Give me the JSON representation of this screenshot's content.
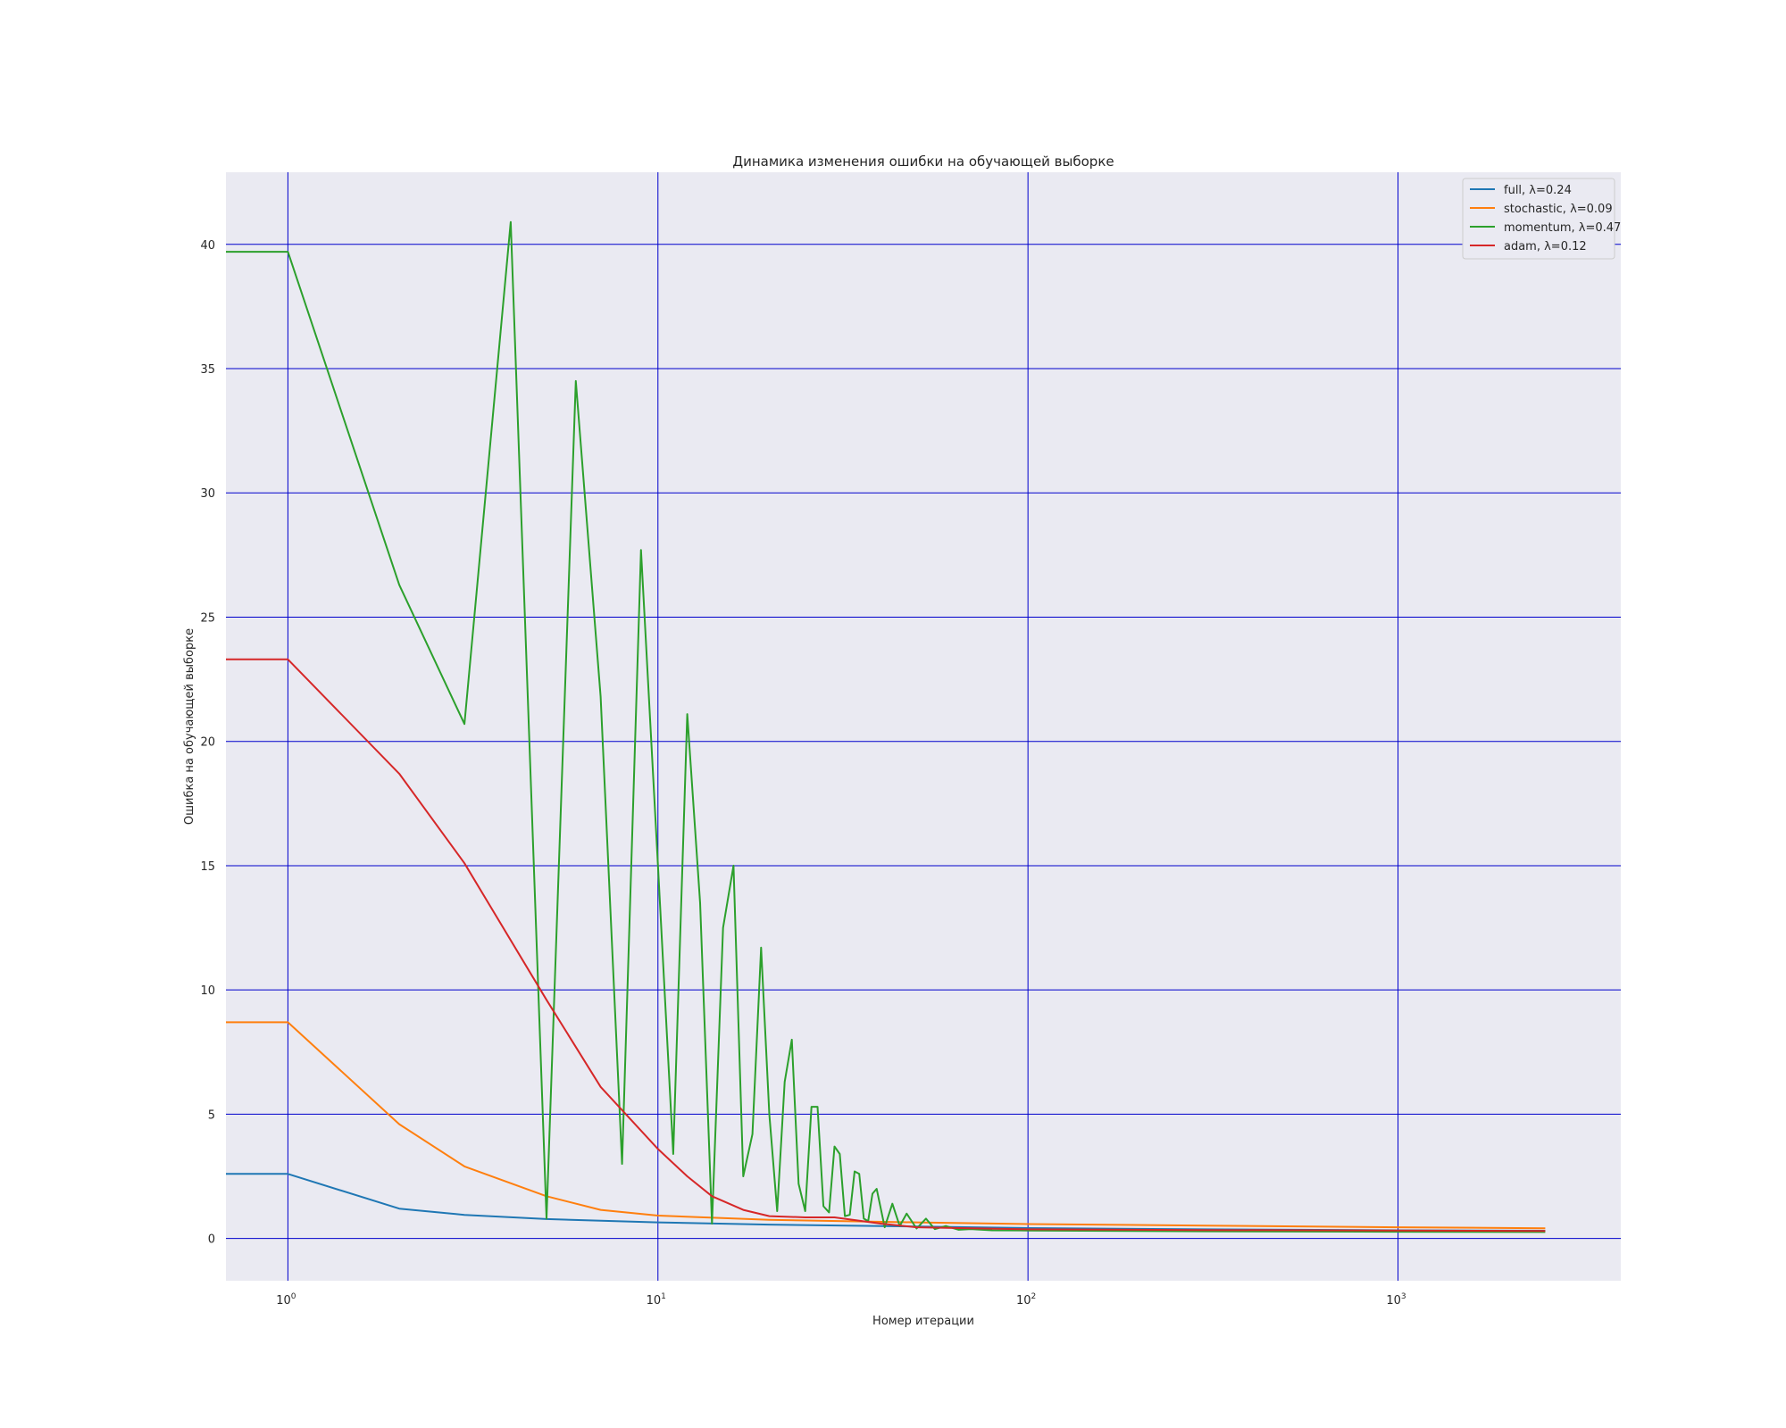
{
  "chart_data": {
    "type": "line",
    "title": "Динамика изменения ошибки на обучающей выборке",
    "xlabel": "Номер итерации",
    "ylabel": "Ошибка на обучающей выборке",
    "x_scale": "log",
    "xlim": [
      0.68,
      4000
    ],
    "ylim": [
      -1.7,
      42.9
    ],
    "x_ticks": [
      {
        "value": 1,
        "base": "10",
        "exp": "0"
      },
      {
        "value": 10,
        "base": "10",
        "exp": "1"
      },
      {
        "value": 100,
        "base": "10",
        "exp": "2"
      },
      {
        "value": 1000,
        "base": "10",
        "exp": "3"
      }
    ],
    "y_ticks": [
      0,
      5,
      10,
      15,
      20,
      25,
      30,
      35,
      40
    ],
    "grid": true,
    "legend_position": "top-right",
    "colors": {
      "background": "#eaeaf2",
      "grid": "#0000cc"
    },
    "series": [
      {
        "name": "full, λ=0.24",
        "color": "#1f77b4",
        "points": [
          [
            0.5,
            2.6
          ],
          [
            1,
            2.6
          ],
          [
            2,
            1.2
          ],
          [
            3,
            0.95
          ],
          [
            5,
            0.78
          ],
          [
            10,
            0.65
          ],
          [
            20,
            0.56
          ],
          [
            50,
            0.48
          ],
          [
            100,
            0.42
          ],
          [
            300,
            0.37
          ],
          [
            1000,
            0.33
          ],
          [
            2500,
            0.31
          ]
        ]
      },
      {
        "name": "stochastic, λ=0.09",
        "color": "#ff7f0e",
        "points": [
          [
            0.5,
            8.7
          ],
          [
            1,
            8.7
          ],
          [
            2,
            4.6
          ],
          [
            3,
            2.9
          ],
          [
            5,
            1.7
          ],
          [
            7,
            1.15
          ],
          [
            10,
            0.92
          ],
          [
            20,
            0.75
          ],
          [
            50,
            0.65
          ],
          [
            100,
            0.58
          ],
          [
            300,
            0.52
          ],
          [
            1000,
            0.45
          ],
          [
            2500,
            0.41
          ]
        ]
      },
      {
        "name": "momentum, λ=0.47",
        "color": "#2ca02c",
        "points": [
          [
            0.5,
            39.7
          ],
          [
            1,
            39.7
          ],
          [
            2,
            26.3
          ],
          [
            3,
            20.7
          ],
          [
            4,
            40.9
          ],
          [
            5,
            0.8
          ],
          [
            6,
            34.5
          ],
          [
            7,
            21.8
          ],
          [
            8,
            3.0
          ],
          [
            9,
            27.7
          ],
          [
            10,
            15.0
          ],
          [
            11,
            3.4
          ],
          [
            12,
            21.1
          ],
          [
            13,
            13.5
          ],
          [
            14,
            0.6
          ],
          [
            15,
            12.5
          ],
          [
            16,
            15.0
          ],
          [
            17,
            2.5
          ],
          [
            18,
            4.2
          ],
          [
            19,
            11.7
          ],
          [
            20,
            5.0
          ],
          [
            21,
            1.1
          ],
          [
            22,
            6.3
          ],
          [
            23,
            8.0
          ],
          [
            24,
            2.2
          ],
          [
            25,
            1.1
          ],
          [
            26,
            5.3
          ],
          [
            27,
            5.3
          ],
          [
            28,
            1.3
          ],
          [
            29,
            1.05
          ],
          [
            30,
            3.7
          ],
          [
            31,
            3.4
          ],
          [
            32,
            0.9
          ],
          [
            33,
            0.95
          ],
          [
            34,
            2.7
          ],
          [
            35,
            2.6
          ],
          [
            36,
            0.8
          ],
          [
            37,
            0.7
          ],
          [
            38,
            1.8
          ],
          [
            39,
            2.0
          ],
          [
            41,
            0.45
          ],
          [
            43,
            1.4
          ],
          [
            45,
            0.5
          ],
          [
            47,
            1.0
          ],
          [
            50,
            0.4
          ],
          [
            53,
            0.8
          ],
          [
            56,
            0.38
          ],
          [
            60,
            0.5
          ],
          [
            65,
            0.35
          ],
          [
            70,
            0.38
          ],
          [
            80,
            0.33
          ],
          [
            100,
            0.32
          ],
          [
            300,
            0.29
          ],
          [
            1000,
            0.27
          ],
          [
            2500,
            0.26
          ]
        ]
      },
      {
        "name": "adam, λ=0.12",
        "color": "#d62728",
        "points": [
          [
            0.5,
            23.3
          ],
          [
            1,
            23.3
          ],
          [
            2,
            18.7
          ],
          [
            3,
            15.1
          ],
          [
            5,
            9.6
          ],
          [
            7,
            6.1
          ],
          [
            10,
            3.6
          ],
          [
            12,
            2.5
          ],
          [
            14,
            1.7
          ],
          [
            17,
            1.15
          ],
          [
            20,
            0.9
          ],
          [
            25,
            0.85
          ],
          [
            30,
            0.85
          ],
          [
            40,
            0.6
          ],
          [
            50,
            0.45
          ],
          [
            100,
            0.37
          ],
          [
            300,
            0.34
          ],
          [
            1000,
            0.32
          ],
          [
            2500,
            0.3
          ]
        ]
      }
    ]
  }
}
